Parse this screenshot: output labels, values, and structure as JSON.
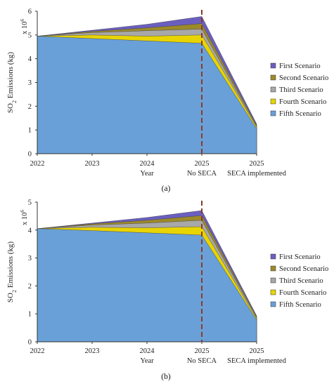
{
  "chart_data": [
    {
      "type": "area",
      "panel_label": "(a)",
      "exponent_label": "x 10",
      "exponent_power": "6",
      "ylabel_main": "SO",
      "ylabel_sub": "2",
      "ylabel_rest": " Emissions (kg)",
      "ylim": [
        0,
        6
      ],
      "yticks": [
        "0",
        "1",
        "2",
        "3",
        "4",
        "5",
        "6"
      ],
      "x_top": [
        "2022",
        "2023",
        "2024",
        "2025",
        "2025"
      ],
      "x_bottom": [
        "",
        "",
        "Year",
        "No SECA",
        "SECA implemented"
      ],
      "legend_position": "right",
      "series": [
        {
          "name": "First Scenario",
          "values": [
            4.95,
            5.2,
            5.45,
            5.78,
            1.25
          ]
        },
        {
          "name": "Second Scenario",
          "values": [
            4.95,
            5.15,
            5.3,
            5.48,
            1.2
          ]
        },
        {
          "name": "Third Scenario",
          "values": [
            4.95,
            5.1,
            5.18,
            5.25,
            1.16
          ]
        },
        {
          "name": "Fourth Scenario",
          "values": [
            4.95,
            5.0,
            4.95,
            5.0,
            1.12
          ]
        },
        {
          "name": "Fifth Scenario",
          "values": [
            4.95,
            4.85,
            4.75,
            4.65,
            1.05
          ]
        }
      ]
    },
    {
      "type": "area",
      "panel_label": "(b)",
      "exponent_label": "x 10",
      "exponent_power": "6",
      "ylabel_main": "SO",
      "ylabel_sub": "2",
      "ylabel_rest": " Emissions (kg)",
      "ylim": [
        0,
        5
      ],
      "yticks": [
        "0",
        "1",
        "2",
        "3",
        "4",
        "5"
      ],
      "x_top": [
        "2022",
        "2023",
        "2024",
        "2025",
        "2025"
      ],
      "x_bottom": [
        "",
        "",
        "Year",
        "No SECA",
        "SECA implemented"
      ],
      "legend_position": "right",
      "series": [
        {
          "name": "First Scenario",
          "values": [
            4.05,
            4.25,
            4.45,
            4.7,
            0.93
          ]
        },
        {
          "name": "Second Scenario",
          "values": [
            4.05,
            4.22,
            4.35,
            4.52,
            0.9
          ]
        },
        {
          "name": "Third Scenario",
          "values": [
            4.05,
            4.18,
            4.25,
            4.35,
            0.87
          ]
        },
        {
          "name": "Fourth Scenario",
          "values": [
            4.05,
            4.1,
            4.08,
            4.12,
            0.83
          ]
        },
        {
          "name": "Fifth Scenario",
          "values": [
            4.05,
            3.98,
            3.9,
            3.82,
            0.78
          ]
        }
      ]
    }
  ],
  "colors": {
    "First Scenario": "#6a5fc0",
    "Second Scenario": "#9c8a2a",
    "Third Scenario": "#a8a8a8",
    "Fourth Scenario": "#e8d400",
    "Fifth Scenario": "#6aa0d8",
    "divider": "#8b3a2a"
  }
}
